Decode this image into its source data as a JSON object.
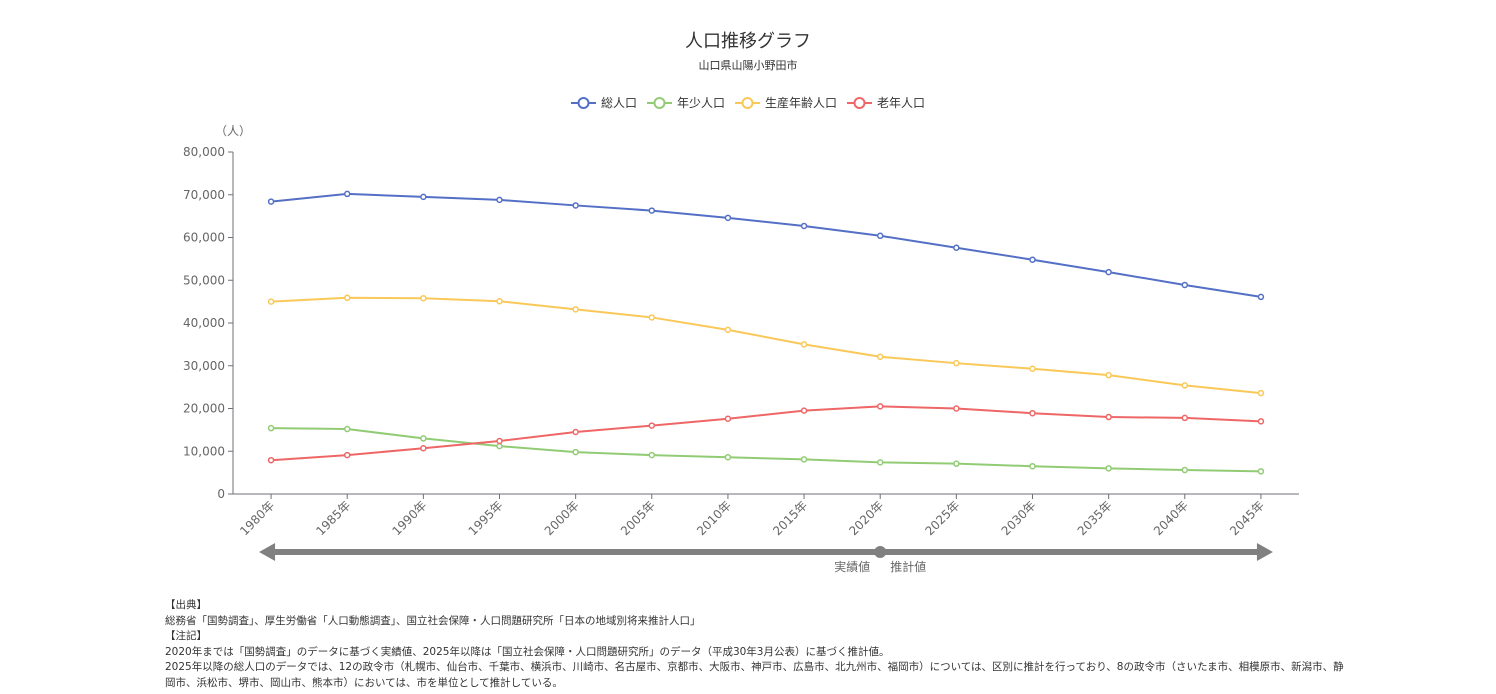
{
  "chart_data": {
    "type": "line",
    "title": "人口推移グラフ",
    "subtitle": "山口県山陽小野田市",
    "ylabel": "（人）",
    "ylim": [
      0,
      80000
    ],
    "yticks": [
      0,
      10000,
      20000,
      30000,
      40000,
      50000,
      60000,
      70000,
      80000
    ],
    "ytick_labels": [
      "0",
      "10,000",
      "20,000",
      "30,000",
      "40,000",
      "50,000",
      "60,000",
      "70,000",
      "80,000"
    ],
    "categories": [
      "1980年",
      "1985年",
      "1990年",
      "1995年",
      "2000年",
      "2005年",
      "2010年",
      "2015年",
      "2020年",
      "2025年",
      "2030年",
      "2035年",
      "2040年",
      "2045年"
    ],
    "series": [
      {
        "name": "総人口",
        "color": "#5470c6",
        "values": [
          68400,
          70200,
          69500,
          68800,
          67500,
          66300,
          64600,
          62700,
          60400,
          57600,
          54800,
          51900,
          48900,
          46100
        ]
      },
      {
        "name": "年少人口",
        "color": "#91cc75",
        "values": [
          15400,
          15200,
          13000,
          11200,
          9800,
          9100,
          8600,
          8100,
          7400,
          7100,
          6500,
          6000,
          5600,
          5300
        ]
      },
      {
        "name": "生産年齢人口",
        "color": "#fac858",
        "values": [
          45000,
          45900,
          45800,
          45100,
          43200,
          41300,
          38400,
          35000,
          32100,
          30600,
          29300,
          27800,
          25400,
          23600
        ]
      },
      {
        "name": "老年人口",
        "color": "#ee6666",
        "values": [
          7900,
          9100,
          10700,
          12400,
          14500,
          16000,
          17600,
          19500,
          20500,
          20000,
          18900,
          18000,
          17800,
          17000
        ]
      }
    ],
    "legend_position": "top-center",
    "grid": false,
    "timeline": {
      "actual_label": "実績値",
      "forecast_label": "推計値",
      "divider_category": "2020年",
      "color": "#808080"
    }
  },
  "notes": {
    "source_heading": "【出典】",
    "source_text": "総務省「国勢調査」、厚生労働省「人口動態調査」、国立社会保障・人口問題研究所「日本の地域別将来推計人口」",
    "notes_heading": "【注記】",
    "note_1": "2020年までは「国勢調査」のデータに基づく実績値、2025年以降は「国立社会保障・人口問題研究所」のデータ（平成30年3月公表）に基づく推計値。",
    "note_2": "2025年以降の総人口のデータでは、12の政令市（札幌市、仙台市、千葉市、横浜市、川崎市、名古屋市、京都市、大阪市、神戸市、広島市、北九州市、福岡市）については、区別に推計を行っており、8の政令市（さいたま市、相模原市、新潟市、静岡市、浜松市、堺市、岡山市、熊本市）においては、市を単位として推計している。"
  }
}
